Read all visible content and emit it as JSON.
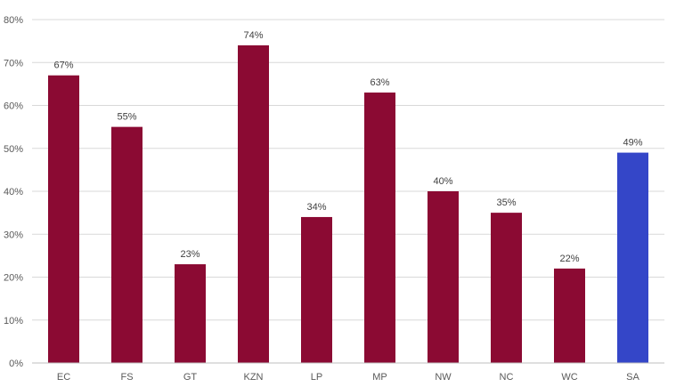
{
  "chart_data": {
    "type": "bar",
    "title": "",
    "xlabel": "",
    "ylabel": "",
    "categories": [
      "EC",
      "FS",
      "GT",
      "KZN",
      "LP",
      "MP",
      "NW",
      "NC",
      "WC",
      "SA"
    ],
    "values": [
      67,
      55,
      23,
      74,
      34,
      63,
      40,
      35,
      22,
      49
    ],
    "value_labels": [
      "67%",
      "55%",
      "23%",
      "74%",
      "34%",
      "63%",
      "40%",
      "35%",
      "22%",
      "49%"
    ],
    "ylim": [
      0,
      80
    ],
    "y_ticks": [
      0,
      10,
      20,
      30,
      40,
      50,
      60,
      70,
      80
    ],
    "y_tick_labels": [
      "0%",
      "10%",
      "20%",
      "30%",
      "40%",
      "50%",
      "60%",
      "70%",
      "80%"
    ],
    "grid": true,
    "legend": "none",
    "colors": {
      "default_bar": "#8b0a33",
      "highlight_bar": "#3446c8"
    },
    "highlight_category": "SA"
  }
}
